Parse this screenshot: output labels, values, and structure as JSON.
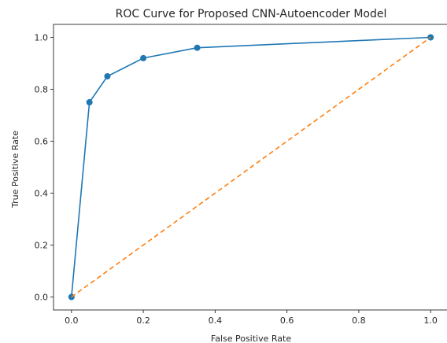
{
  "chart_data": {
    "type": "line",
    "title": "ROC Curve for Proposed CNN-Autoencoder Model",
    "xlabel": "False Positive Rate",
    "ylabel": "True Positive Rate",
    "xlim": [
      -0.05,
      1.05
    ],
    "ylim": [
      -0.05,
      1.05
    ],
    "xticks": [
      0.0,
      0.2,
      0.4,
      0.6,
      0.8,
      1.0
    ],
    "yticks": [
      0.0,
      0.2,
      0.4,
      0.6,
      0.8,
      1.0
    ],
    "xtick_labels": [
      "0.0",
      "0.2",
      "0.4",
      "0.6",
      "0.8",
      "1.0"
    ],
    "ytick_labels": [
      "0.0",
      "0.2",
      "0.4",
      "0.6",
      "0.8",
      "1.0"
    ],
    "grid": false,
    "series": [
      {
        "style": "solid-with-markers",
        "color": "#1f77b4",
        "x": [
          0.0,
          0.05,
          0.1,
          0.2,
          0.35,
          1.0
        ],
        "y": [
          0.0,
          0.75,
          0.85,
          0.92,
          0.96,
          1.0
        ]
      },
      {
        "style": "dashed",
        "color": "#ff7f0e",
        "x": [
          0.0,
          1.0
        ],
        "y": [
          0.0,
          1.0
        ]
      }
    ]
  }
}
